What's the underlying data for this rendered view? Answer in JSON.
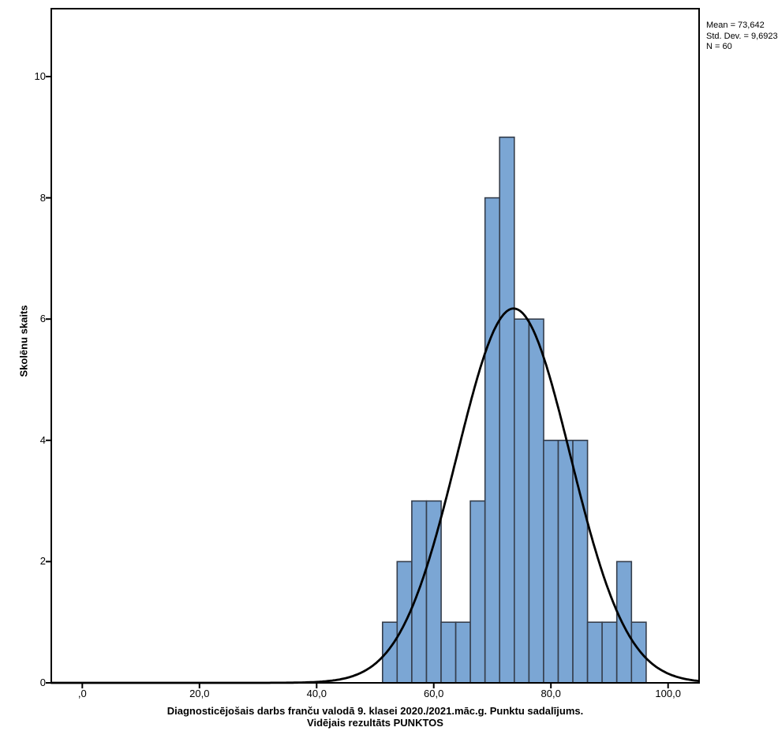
{
  "chart_data": {
    "type": "bar",
    "subtype": "histogram",
    "title": "",
    "x_axis": {
      "label_line1": "Diagnosticējošais darbs franču valodā 9. klasei 2020./2021.māc.g. Punktu sadalījums.",
      "label_line2": "Vidējais rezultāts PUNKTOS",
      "tick_values": [
        0,
        20,
        40,
        60,
        80,
        100
      ],
      "tick_labels": [
        ",0",
        "20,0",
        "40,0",
        "60,0",
        "80,0",
        "100,0"
      ],
      "lim": [
        -5.3,
        105.3
      ]
    },
    "y_axis": {
      "label": "Skolēnu skaits",
      "tick_values": [
        0,
        2,
        4,
        6,
        8,
        10
      ],
      "tick_labels": [
        "0",
        "2",
        "4",
        "6",
        "8",
        "10"
      ],
      "lim": [
        0,
        11.12
      ]
    },
    "bins": {
      "start": 51.25,
      "width": 2.5,
      "centers": [
        52.5,
        55,
        57.5,
        60,
        62.5,
        65,
        67.5,
        70,
        72.5,
        75,
        77.5,
        80,
        82.5,
        85,
        87.5,
        90,
        92.5,
        95
      ],
      "counts": [
        1,
        2,
        3,
        3,
        1,
        1,
        3,
        8,
        9,
        6,
        6,
        4,
        4,
        4,
        1,
        1,
        2,
        1
      ]
    },
    "normal_curve": {
      "mean": 73.642,
      "std_dev": 9.6923,
      "n": 60
    },
    "grid": "off",
    "legend": "none"
  },
  "stats_box": {
    "lines": [
      "Mean = 73,642",
      "Std. Dev. = 9,6923",
      "N = 60"
    ]
  },
  "colors": {
    "background": "#FFFFFF",
    "bar_fill": "#7BA6D4",
    "bar_stroke": "#353E4C",
    "curve": "#000000",
    "axis": "#000000",
    "text": "#000000"
  }
}
